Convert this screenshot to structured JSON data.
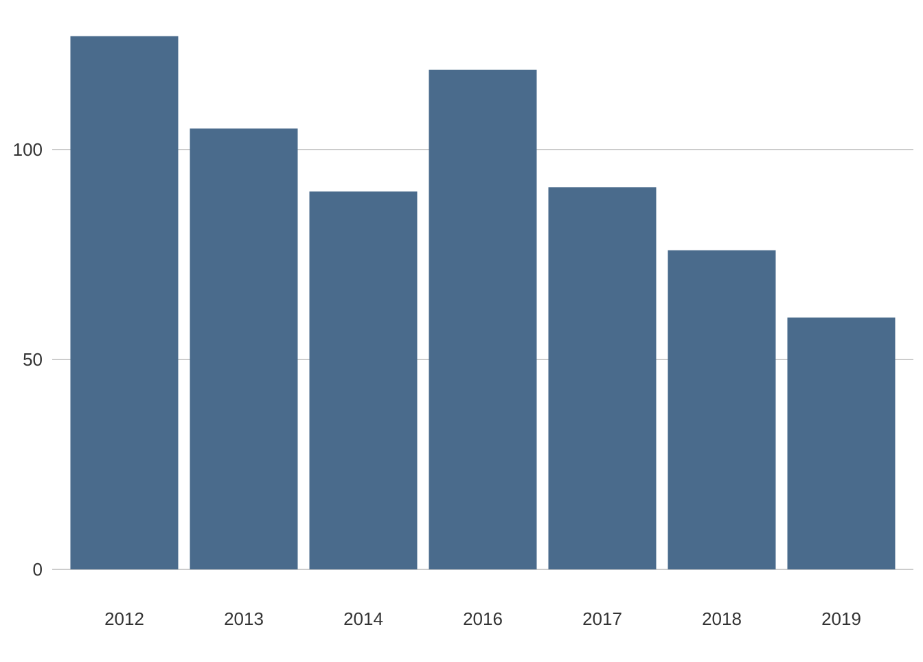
{
  "chart_data": {
    "type": "bar",
    "title": "",
    "xlabel": "",
    "ylabel": "",
    "categories": [
      "2012",
      "2013",
      "2014",
      "2016",
      "2017",
      "2018",
      "2019"
    ],
    "values": [
      127,
      105,
      90,
      119,
      91,
      76,
      60
    ],
    "ylim": [
      0,
      127
    ],
    "yticks": [
      0,
      50,
      100
    ],
    "ytick_labels": [
      "0",
      "50",
      "100"
    ],
    "grid": "horizontal",
    "legend": "none",
    "colors": {
      "bar": "#4a6b8c",
      "grid": "#cccccc",
      "text": "#333333",
      "background": "#ffffff"
    }
  }
}
